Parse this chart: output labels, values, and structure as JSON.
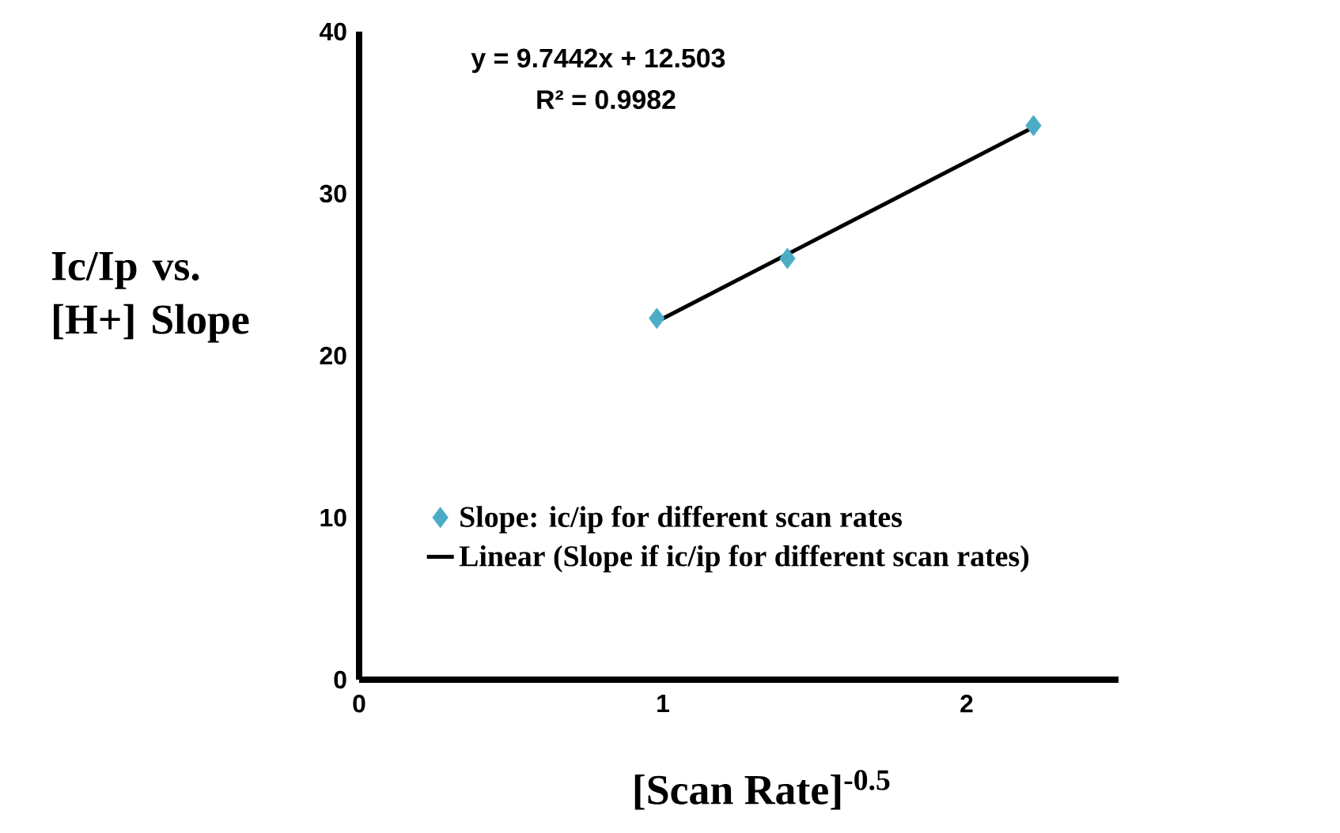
{
  "chart_data": {
    "type": "scatter",
    "xlabel": "[Scan Rate]$^{-0.5}$",
    "ylabel": "Ic/Ip vs. [H+] Slope",
    "xlim": [
      0,
      2.5
    ],
    "xticks": [
      0,
      1,
      2
    ],
    "ylim": [
      0,
      40
    ],
    "yticks": [
      0,
      10,
      20,
      30,
      40
    ],
    "legend": "bottom",
    "annotations": [
      "y = 9.7442x + 12.503",
      "R² = 0.9982"
    ],
    "series": [
      {
        "name": "Slope: ic/ip for different scan rates",
        "marker": "diamond",
        "color": "#4bacc6",
        "x": [
          0.98,
          1.41,
          2.22
        ],
        "values": [
          22.3,
          26.0,
          34.2
        ]
      },
      {
        "name": "Linear (Slope if ic/ip for different scan rates)",
        "type": "line",
        "marker": "none",
        "line_style": "solid",
        "color": "#000000",
        "x": [
          0.98,
          2.22
        ],
        "values": [
          22.1,
          34.1
        ]
      }
    ]
  }
}
